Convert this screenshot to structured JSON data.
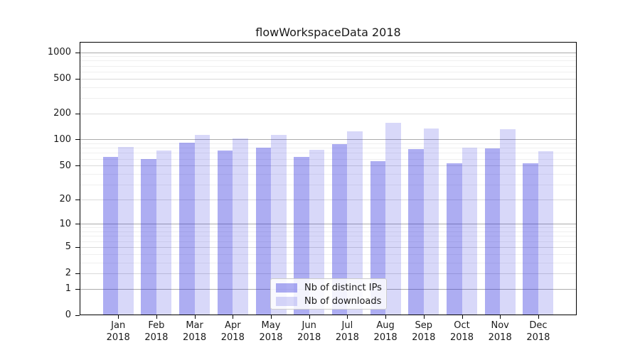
{
  "chart_data": {
    "type": "bar",
    "title": "flowWorkspaceData 2018",
    "scale": "log1p",
    "grid": true,
    "legend_position": "inside-bottom-center",
    "categories": [
      "Jan",
      "Feb",
      "Mar",
      "Apr",
      "May",
      "Jun",
      "Jul",
      "Aug",
      "Sep",
      "Oct",
      "Nov",
      "Dec"
    ],
    "category_year": "2018",
    "y_ticks": [
      0,
      1,
      2,
      5,
      10,
      20,
      50,
      100,
      200,
      500,
      1000
    ],
    "y_minor_ticks": [
      3,
      4,
      6,
      7,
      8,
      9,
      30,
      40,
      60,
      70,
      80,
      90,
      300,
      400,
      600,
      700,
      800,
      900
    ],
    "ylim": [
      0,
      1220
    ],
    "series": [
      {
        "name": "Nb of distinct IPs",
        "color": "#a9a9f3",
        "values": [
          63,
          59,
          91,
          74,
          80,
          63,
          88,
          56,
          77,
          53,
          79,
          53
        ]
      },
      {
        "name": "Nb of downloads",
        "color": "#d9d9f8",
        "values": [
          82,
          74,
          112,
          103,
          114,
          76,
          125,
          155,
          135,
          80,
          131,
          73
        ]
      }
    ]
  },
  "colors": {
    "bar_ips": "#a9a9f3",
    "bar_downloads": "#d9d9f8",
    "grid_strong": "#ababab",
    "grid_mid": "#dadada",
    "grid_minor": "#efefef",
    "spine": "#000000"
  }
}
